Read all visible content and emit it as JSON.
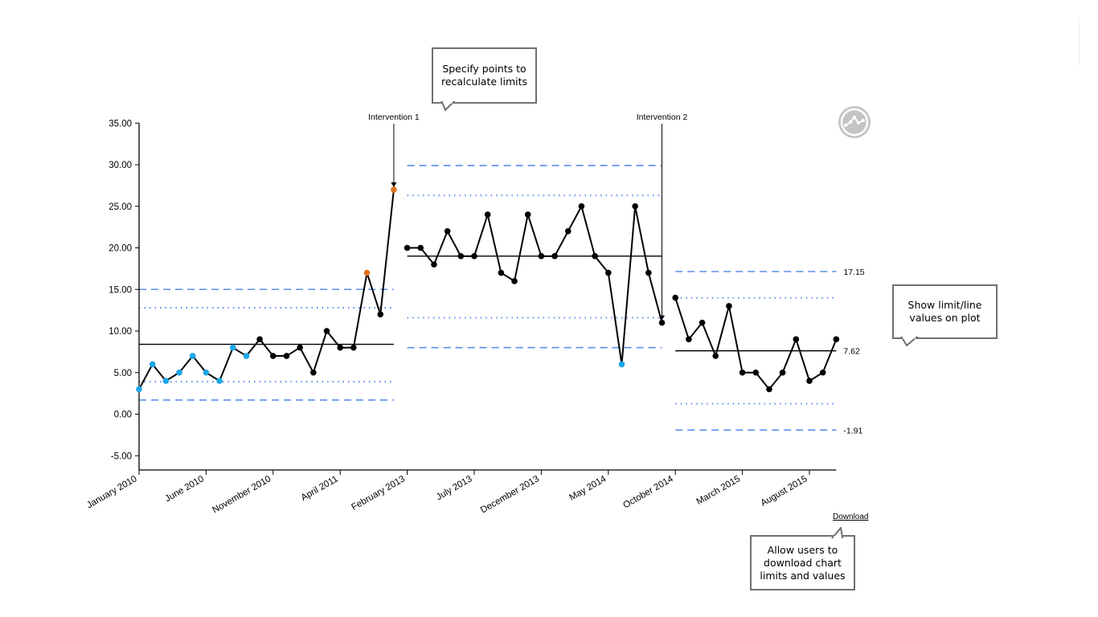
{
  "callouts": {
    "recalc": "Specify points to recalculate limits",
    "show_values": "Show limit/line values on plot",
    "download_info": "Allow users to download chart limits and values"
  },
  "download_label": "Download",
  "settings_icon": "spc-settings-icon",
  "colors": {
    "line": "#000000",
    "point": "#000000",
    "limit": "#5b8def",
    "special_cause_low": "#1aa7e8",
    "special_cause_high": "#e0731f",
    "icon": "#c4c4c4"
  },
  "chart_data": {
    "type": "line",
    "title": "",
    "xlabel": "",
    "ylabel": "",
    "ylim": [
      -6.5,
      35
    ],
    "y_ticks": [
      "35.00",
      "30.00",
      "25.00",
      "20.00",
      "15.00",
      "10.00",
      "5.00",
      "0.00",
      "-5.00"
    ],
    "x_tick_labels": [
      {
        "index": 0,
        "label": "January 2010"
      },
      {
        "index": 5,
        "label": "June 2010"
      },
      {
        "index": 10,
        "label": "November 2010"
      },
      {
        "index": 15,
        "label": "April 2011"
      },
      {
        "index": 20,
        "label": "February 2013"
      },
      {
        "index": 25,
        "label": "July 2013"
      },
      {
        "index": 30,
        "label": "December 2013"
      },
      {
        "index": 35,
        "label": "May 2014"
      },
      {
        "index": 40,
        "label": "October 2014"
      },
      {
        "index": 45,
        "label": "March 2015"
      },
      {
        "index": 50,
        "label": "August 2015"
      }
    ],
    "n_points": 53,
    "segments": [
      {
        "start_index": 0,
        "values": [
          3,
          6,
          4,
          5,
          7,
          5,
          4,
          8,
          7,
          9,
          7,
          7,
          8,
          5,
          10,
          8,
          8,
          17,
          12,
          27
        ],
        "colors": [
          "low",
          "low",
          "low",
          "low",
          "low",
          "low",
          "low",
          "low",
          "low",
          "normal",
          "normal",
          "normal",
          "normal",
          "normal",
          "normal",
          "normal",
          "normal",
          "high",
          "normal",
          "high"
        ],
        "centre": 8.4,
        "ucl": 15.0,
        "lcl": 1.7,
        "upper_2sigma": 12.8,
        "lower_2sigma": 3.9
      },
      {
        "start_index": 20,
        "values": [
          20,
          20,
          18,
          22,
          19,
          19,
          24,
          17,
          16,
          24,
          19,
          19,
          22,
          25,
          19,
          17,
          6,
          25,
          17,
          11
        ],
        "colors": [
          "normal",
          "normal",
          "normal",
          "normal",
          "normal",
          "normal",
          "normal",
          "normal",
          "normal",
          "normal",
          "normal",
          "normal",
          "normal",
          "normal",
          "normal",
          "normal",
          "low",
          "normal",
          "normal",
          "normal"
        ],
        "centre": 19.0,
        "ucl": 29.9,
        "lcl": 8.0,
        "upper_2sigma": 26.3,
        "lower_2sigma": 11.6
      },
      {
        "start_index": 40,
        "values": [
          14,
          9,
          11,
          7,
          13,
          5,
          5,
          3,
          5,
          9,
          4,
          5,
          9
        ],
        "colors": [
          "normal",
          "normal",
          "normal",
          "normal",
          "normal",
          "normal",
          "normal",
          "normal",
          "normal",
          "normal",
          "normal",
          "normal",
          "normal"
        ],
        "centre": 7.62,
        "ucl": 17.15,
        "lcl": -1.91,
        "upper_2sigma": 13.98,
        "lower_2sigma": 1.26,
        "labels": {
          "ucl": "17.15",
          "centre": "7.62",
          "lcl": "-1.91"
        }
      }
    ],
    "annotations": [
      {
        "label": "Intervention 1",
        "index": 19,
        "value": 27
      },
      {
        "label": "Intervention 2",
        "index": 39,
        "value": 11
      }
    ]
  }
}
